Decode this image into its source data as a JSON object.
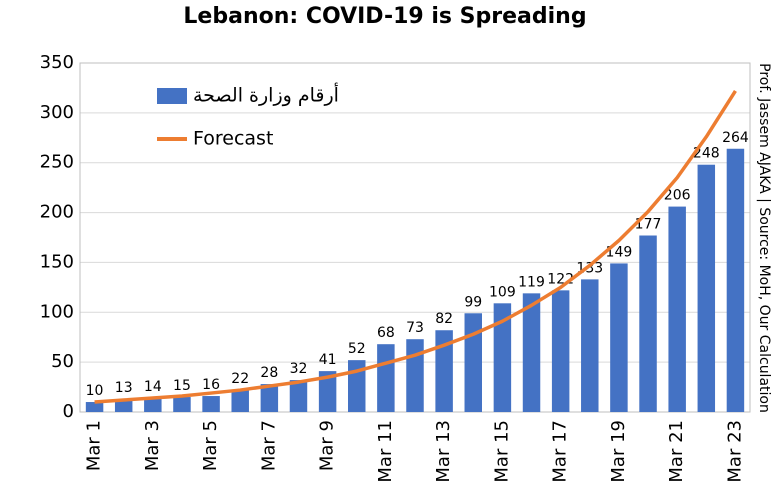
{
  "chart_data": {
    "type": "bar-line",
    "title": "Lebanon: COVID-19 is Spreading",
    "side_note": "Prof. Jassem AJAKA | Source: MoH, Our Calculation",
    "categories": [
      "Mar 1",
      null,
      "Mar 3",
      null,
      "Mar 5",
      null,
      "Mar 7",
      null,
      "Mar 9",
      null,
      "Mar 11",
      null,
      "Mar 13",
      null,
      "Mar 15",
      null,
      "Mar 17",
      null,
      "Mar 19",
      null,
      "Mar 21",
      null,
      "Mar 23"
    ],
    "series": [
      {
        "name": "أرقام وزارة الصحة",
        "type": "bar",
        "color": "#4472c4",
        "values": [
          10,
          13,
          14,
          15,
          16,
          22,
          28,
          32,
          41,
          52,
          68,
          73,
          82,
          99,
          109,
          119,
          122,
          133,
          149,
          177,
          206,
          248,
          264
        ]
      },
      {
        "name": "Forecast",
        "type": "line",
        "color": "#ed7d31",
        "values": [
          10,
          12,
          14,
          16,
          19,
          22,
          26,
          30,
          35,
          41,
          49,
          57,
          67,
          78,
          91,
          107,
          125,
          147,
          172,
          201,
          235,
          276,
          322
        ]
      }
    ],
    "ylim": [
      0,
      350
    ],
    "yticks": [
      0,
      50,
      100,
      150,
      200,
      250,
      300,
      350
    ],
    "grid": true,
    "legend": "upper left"
  }
}
